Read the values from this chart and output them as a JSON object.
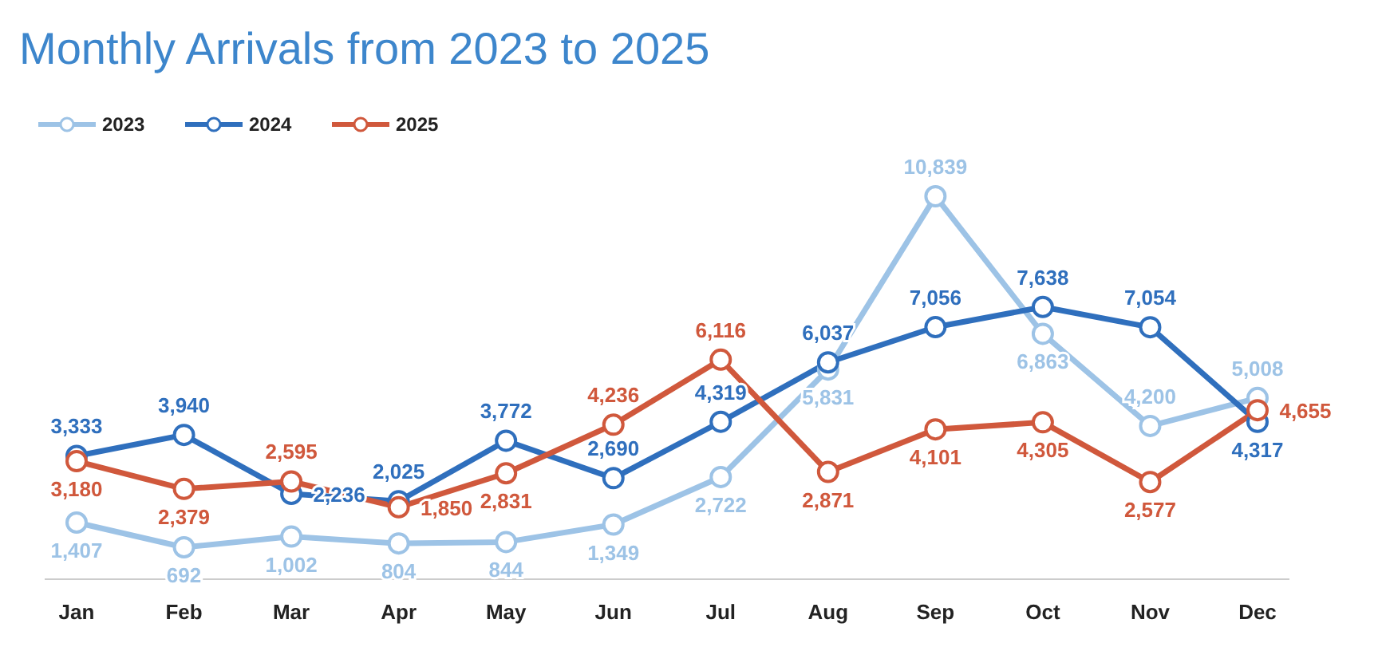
{
  "chart_data": {
    "type": "line",
    "title": "Monthly Arrivals from 2023 to 2025",
    "categories": [
      "Jan",
      "Feb",
      "Mar",
      "Apr",
      "May",
      "Jun",
      "Jul",
      "Aug",
      "Sep",
      "Oct",
      "Nov",
      "Dec"
    ],
    "series": [
      {
        "name": "2023",
        "color": "#9dc3e6",
        "values": [
          1407,
          692,
          1002,
          804,
          844,
          1349,
          2722,
          5831,
          10839,
          6863,
          4200,
          5008
        ],
        "value_labels": [
          "1,407",
          "692",
          "1,002",
          "804",
          "844",
          "1,349",
          "2,722",
          "5,831",
          "10,839",
          "6,863",
          "4,200",
          "5,008"
        ]
      },
      {
        "name": "2024",
        "color": "#2f6fbd",
        "values": [
          3333,
          3940,
          2236,
          2025,
          3772,
          2690,
          4319,
          6037,
          7056,
          7638,
          7054,
          4317
        ],
        "value_labels": [
          "3,333",
          "3,940",
          "2,236",
          "2,025",
          "3,772",
          "2,690",
          "4,319",
          "6,037",
          "7,056",
          "7,638",
          "7,054",
          "4,317"
        ]
      },
      {
        "name": "2025",
        "color": "#d0583c",
        "values": [
          3180,
          2379,
          2595,
          1850,
          2831,
          4236,
          6116,
          2871,
          4101,
          4305,
          2577,
          4655
        ],
        "value_labels": [
          "3,180",
          "2,379",
          "2,595",
          "1,850",
          "2,831",
          "4,236",
          "6,116",
          "2,871",
          "4,101",
          "4,305",
          "2,577",
          "4,655"
        ]
      }
    ],
    "legend": "top left",
    "marker": "circle",
    "line_style": "solid"
  }
}
